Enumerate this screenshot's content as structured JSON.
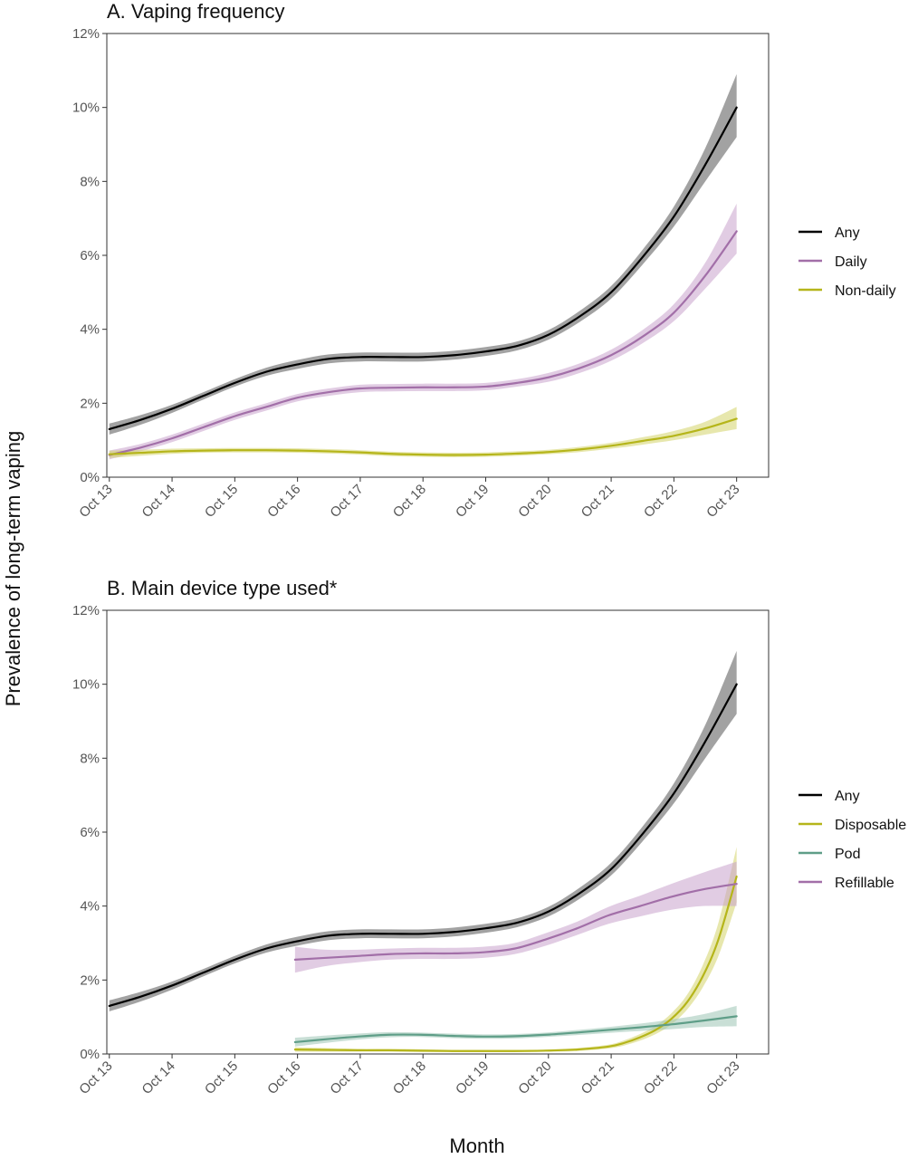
{
  "figure": {
    "ylabel": "Prevalence of long-term vaping",
    "xlabel": "Month"
  },
  "chart_data": [
    {
      "type": "line",
      "title": "A. Vaping frequency",
      "xlabel": "Month",
      "ylabel": "Prevalence of long-term vaping",
      "x_ticks": [
        "Oct 13",
        "Oct 14",
        "Oct 15",
        "Oct 16",
        "Oct 17",
        "Oct 18",
        "Oct 19",
        "Oct 20",
        "Oct 21",
        "Oct 22",
        "Oct 23"
      ],
      "y_ticks": [
        "0%",
        "2%",
        "4%",
        "6%",
        "8%",
        "10%",
        "12%"
      ],
      "xlim": [
        2013.75,
        2024.3
      ],
      "ylim": [
        0,
        12
      ],
      "grid": false,
      "legend_position": "right",
      "series": [
        {
          "name": "Any",
          "color": "#000000",
          "band_color": "#555555",
          "x": [
            2013.79,
            2014.29,
            2014.79,
            2015.29,
            2015.79,
            2016.29,
            2016.79,
            2017.29,
            2017.79,
            2018.29,
            2018.79,
            2019.29,
            2019.79,
            2020.29,
            2020.79,
            2021.29,
            2021.79,
            2022.29,
            2022.79,
            2023.29,
            2023.79
          ],
          "y": [
            1.3,
            1.55,
            1.85,
            2.2,
            2.55,
            2.85,
            3.05,
            3.2,
            3.25,
            3.25,
            3.25,
            3.3,
            3.4,
            3.55,
            3.85,
            4.35,
            5.0,
            5.95,
            7.05,
            8.45,
            10.0
          ],
          "lower": [
            1.15,
            1.42,
            1.74,
            2.1,
            2.45,
            2.74,
            2.93,
            3.08,
            3.13,
            3.13,
            3.13,
            3.18,
            3.28,
            3.43,
            3.72,
            4.2,
            4.83,
            5.75,
            6.78,
            8.0,
            9.2
          ],
          "upper": [
            1.45,
            1.68,
            1.96,
            2.3,
            2.65,
            2.96,
            3.17,
            3.32,
            3.37,
            3.37,
            3.37,
            3.42,
            3.52,
            3.67,
            3.98,
            4.5,
            5.17,
            6.15,
            7.32,
            8.9,
            10.9
          ]
        },
        {
          "name": "Daily",
          "color": "#a26fa8",
          "band_color": "#c9a2cc",
          "x": [
            2013.79,
            2014.29,
            2014.79,
            2015.29,
            2015.79,
            2016.29,
            2016.79,
            2017.29,
            2017.79,
            2018.29,
            2018.79,
            2019.29,
            2019.79,
            2020.29,
            2020.79,
            2021.29,
            2021.79,
            2022.29,
            2022.79,
            2023.29,
            2023.79
          ],
          "y": [
            0.6,
            0.8,
            1.05,
            1.35,
            1.65,
            1.9,
            2.15,
            2.3,
            2.4,
            2.42,
            2.43,
            2.43,
            2.45,
            2.55,
            2.7,
            2.95,
            3.3,
            3.8,
            4.45,
            5.45,
            6.65
          ],
          "lower": [
            0.48,
            0.7,
            0.95,
            1.25,
            1.55,
            1.8,
            2.05,
            2.2,
            2.3,
            2.32,
            2.33,
            2.33,
            2.35,
            2.45,
            2.58,
            2.82,
            3.15,
            3.62,
            4.22,
            5.1,
            6.05
          ],
          "upper": [
            0.72,
            0.9,
            1.15,
            1.45,
            1.75,
            2.0,
            2.25,
            2.4,
            2.5,
            2.52,
            2.53,
            2.53,
            2.55,
            2.65,
            2.82,
            3.08,
            3.45,
            3.98,
            4.68,
            5.8,
            7.4
          ]
        },
        {
          "name": "Non-daily",
          "color": "#b5b51a",
          "band_color": "#d3d36a",
          "x": [
            2013.79,
            2014.29,
            2014.79,
            2015.29,
            2015.79,
            2016.29,
            2016.79,
            2017.29,
            2017.79,
            2018.29,
            2018.79,
            2019.29,
            2019.79,
            2020.29,
            2020.79,
            2021.29,
            2021.79,
            2022.29,
            2022.79,
            2023.29,
            2023.79
          ],
          "y": [
            0.62,
            0.66,
            0.7,
            0.72,
            0.73,
            0.73,
            0.72,
            0.7,
            0.67,
            0.63,
            0.61,
            0.6,
            0.61,
            0.64,
            0.68,
            0.75,
            0.85,
            0.98,
            1.12,
            1.32,
            1.58
          ],
          "lower": [
            0.52,
            0.58,
            0.63,
            0.66,
            0.67,
            0.67,
            0.66,
            0.64,
            0.61,
            0.57,
            0.55,
            0.54,
            0.55,
            0.58,
            0.62,
            0.68,
            0.77,
            0.88,
            1.0,
            1.15,
            1.3
          ],
          "upper": [
            0.72,
            0.74,
            0.77,
            0.78,
            0.79,
            0.79,
            0.78,
            0.76,
            0.73,
            0.69,
            0.67,
            0.66,
            0.67,
            0.7,
            0.74,
            0.82,
            0.93,
            1.08,
            1.25,
            1.5,
            1.9
          ]
        }
      ]
    },
    {
      "type": "line",
      "title": "B. Main device type used*",
      "xlabel": "Month",
      "ylabel": "Prevalence of long-term vaping",
      "x_ticks": [
        "Oct 13",
        "Oct 14",
        "Oct 15",
        "Oct 16",
        "Oct 17",
        "Oct 18",
        "Oct 19",
        "Oct 20",
        "Oct 21",
        "Oct 22",
        "Oct 23"
      ],
      "y_ticks": [
        "0%",
        "2%",
        "4%",
        "6%",
        "8%",
        "10%",
        "12%"
      ],
      "xlim": [
        2013.75,
        2024.3
      ],
      "ylim": [
        0,
        12
      ],
      "grid": false,
      "legend_position": "right",
      "series": [
        {
          "name": "Any",
          "color": "#000000",
          "band_color": "#555555",
          "x": [
            2013.79,
            2014.29,
            2014.79,
            2015.29,
            2015.79,
            2016.29,
            2016.79,
            2017.29,
            2017.79,
            2018.29,
            2018.79,
            2019.29,
            2019.79,
            2020.29,
            2020.79,
            2021.29,
            2021.79,
            2022.29,
            2022.79,
            2023.29,
            2023.79
          ],
          "y": [
            1.3,
            1.55,
            1.85,
            2.2,
            2.55,
            2.85,
            3.05,
            3.2,
            3.25,
            3.25,
            3.25,
            3.3,
            3.4,
            3.55,
            3.85,
            4.35,
            5.0,
            5.95,
            7.05,
            8.45,
            10.0
          ],
          "lower": [
            1.15,
            1.42,
            1.74,
            2.1,
            2.45,
            2.74,
            2.93,
            3.08,
            3.13,
            3.13,
            3.13,
            3.18,
            3.28,
            3.43,
            3.72,
            4.2,
            4.83,
            5.75,
            6.78,
            8.0,
            9.2
          ],
          "upper": [
            1.45,
            1.68,
            1.96,
            2.3,
            2.65,
            2.96,
            3.17,
            3.32,
            3.37,
            3.37,
            3.37,
            3.42,
            3.52,
            3.67,
            3.98,
            4.5,
            5.17,
            6.15,
            7.32,
            8.9,
            10.9
          ]
        },
        {
          "name": "Disposable",
          "color": "#b5b51a",
          "band_color": "#d3d36a",
          "x": [
            2016.75,
            2017.25,
            2017.75,
            2018.25,
            2018.75,
            2019.25,
            2019.75,
            2020.25,
            2020.75,
            2021.25,
            2021.75,
            2022.0,
            2022.25,
            2022.5,
            2022.75,
            2023.0,
            2023.25,
            2023.5,
            2023.79
          ],
          "y": [
            0.12,
            0.11,
            0.1,
            0.1,
            0.09,
            0.08,
            0.08,
            0.08,
            0.09,
            0.12,
            0.2,
            0.3,
            0.45,
            0.65,
            0.95,
            1.4,
            2.1,
            3.1,
            4.8
          ],
          "lower": [
            0.06,
            0.06,
            0.06,
            0.06,
            0.05,
            0.05,
            0.05,
            0.05,
            0.06,
            0.08,
            0.15,
            0.23,
            0.36,
            0.54,
            0.8,
            1.2,
            1.8,
            2.65,
            4.1
          ],
          "upper": [
            0.18,
            0.16,
            0.14,
            0.14,
            0.13,
            0.11,
            0.11,
            0.11,
            0.12,
            0.16,
            0.25,
            0.37,
            0.54,
            0.76,
            1.1,
            1.6,
            2.4,
            3.55,
            5.6
          ]
        },
        {
          "name": "Pod",
          "color": "#5f9e88",
          "band_color": "#9cc4b4",
          "x": [
            2016.75,
            2017.25,
            2017.75,
            2018.25,
            2018.75,
            2019.25,
            2019.75,
            2020.25,
            2020.75,
            2021.25,
            2021.75,
            2022.25,
            2022.75,
            2023.25,
            2023.79
          ],
          "y": [
            0.32,
            0.4,
            0.47,
            0.52,
            0.52,
            0.49,
            0.47,
            0.48,
            0.52,
            0.58,
            0.65,
            0.72,
            0.8,
            0.9,
            1.02
          ],
          "lower": [
            0.2,
            0.3,
            0.39,
            0.45,
            0.46,
            0.43,
            0.41,
            0.42,
            0.46,
            0.51,
            0.57,
            0.62,
            0.67,
            0.73,
            0.75
          ],
          "upper": [
            0.44,
            0.5,
            0.55,
            0.59,
            0.58,
            0.55,
            0.53,
            0.54,
            0.58,
            0.65,
            0.73,
            0.82,
            0.93,
            1.07,
            1.3
          ]
        },
        {
          "name": "Refillable",
          "color": "#a26fa8",
          "band_color": "#c9a2cc",
          "x": [
            2016.75,
            2017.25,
            2017.75,
            2018.25,
            2018.75,
            2019.25,
            2019.75,
            2020.25,
            2020.75,
            2021.25,
            2021.75,
            2022.25,
            2022.75,
            2023.25,
            2023.79
          ],
          "y": [
            2.55,
            2.6,
            2.65,
            2.7,
            2.72,
            2.72,
            2.75,
            2.85,
            3.1,
            3.4,
            3.75,
            4.0,
            4.25,
            4.45,
            4.6
          ],
          "lower": [
            2.2,
            2.38,
            2.48,
            2.55,
            2.57,
            2.57,
            2.6,
            2.7,
            2.93,
            3.22,
            3.52,
            3.72,
            3.9,
            4.0,
            4.0
          ],
          "upper": [
            2.9,
            2.82,
            2.82,
            2.85,
            2.87,
            2.87,
            2.9,
            3.0,
            3.27,
            3.58,
            3.98,
            4.28,
            4.6,
            4.9,
            5.2
          ]
        }
      ]
    }
  ]
}
